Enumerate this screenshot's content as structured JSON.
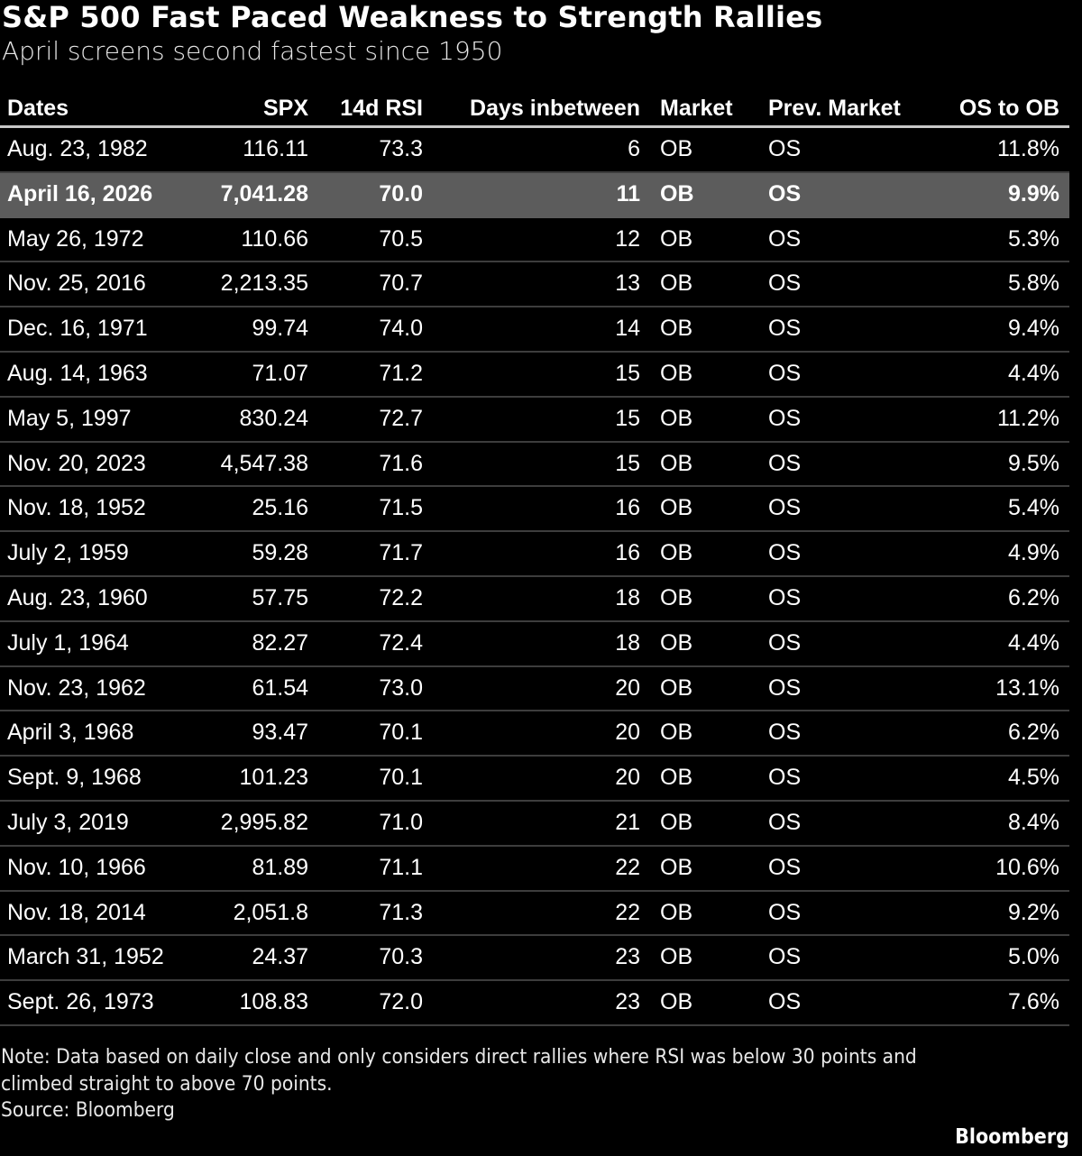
{
  "title": "S&P 500 Fast Paced Weakness to Strength Rallies",
  "subtitle": "April screens second fastest since 1950",
  "chart_data": {
    "type": "table",
    "columns": [
      "Dates",
      "SPX",
      "14d RSI",
      "Days inbetween",
      "Market",
      "Prev. Market",
      "OS to OB"
    ],
    "highlighted_row": 1,
    "rows": [
      [
        "Aug. 23, 1982",
        "116.11",
        "73.3",
        "6",
        "OB",
        "OS",
        "11.8%"
      ],
      [
        "April 16, 2026",
        "7,041.28",
        "70.0",
        "11",
        "OB",
        "OS",
        "9.9%"
      ],
      [
        "May 26, 1972",
        "110.66",
        "70.5",
        "12",
        "OB",
        "OS",
        "5.3%"
      ],
      [
        "Nov. 25, 2016",
        "2,213.35",
        "70.7",
        "13",
        "OB",
        "OS",
        "5.8%"
      ],
      [
        "Dec. 16, 1971",
        "99.74",
        "74.0",
        "14",
        "OB",
        "OS",
        "9.4%"
      ],
      [
        "Aug. 14, 1963",
        "71.07",
        "71.2",
        "15",
        "OB",
        "OS",
        "4.4%"
      ],
      [
        "May 5, 1997",
        "830.24",
        "72.7",
        "15",
        "OB",
        "OS",
        "11.2%"
      ],
      [
        "Nov. 20, 2023",
        "4,547.38",
        "71.6",
        "15",
        "OB",
        "OS",
        "9.5%"
      ],
      [
        "Nov. 18, 1952",
        "25.16",
        "71.5",
        "16",
        "OB",
        "OS",
        "5.4%"
      ],
      [
        "July 2, 1959",
        "59.28",
        "71.7",
        "16",
        "OB",
        "OS",
        "4.9%"
      ],
      [
        "Aug. 23, 1960",
        "57.75",
        "72.2",
        "18",
        "OB",
        "OS",
        "6.2%"
      ],
      [
        "July 1, 1964",
        "82.27",
        "72.4",
        "18",
        "OB",
        "OS",
        "4.4%"
      ],
      [
        "Nov. 23, 1962",
        "61.54",
        "73.0",
        "20",
        "OB",
        "OS",
        "13.1%"
      ],
      [
        "April 3, 1968",
        "93.47",
        "70.1",
        "20",
        "OB",
        "OS",
        "6.2%"
      ],
      [
        "Sept. 9, 1968",
        "101.23",
        "70.1",
        "20",
        "OB",
        "OS",
        "4.5%"
      ],
      [
        "July 3, 2019",
        "2,995.82",
        "71.0",
        "21",
        "OB",
        "OS",
        "8.4%"
      ],
      [
        "Nov. 10, 1966",
        "81.89",
        "71.1",
        "22",
        "OB",
        "OS",
        "10.6%"
      ],
      [
        "Nov. 18, 2014",
        "2,051.8",
        "71.3",
        "22",
        "OB",
        "OS",
        "9.2%"
      ],
      [
        "March 31, 1952",
        "24.37",
        "70.3",
        "23",
        "OB",
        "OS",
        "5.0%"
      ],
      [
        "Sept. 26, 1973",
        "108.83",
        "72.0",
        "23",
        "OB",
        "OS",
        "7.6%"
      ]
    ]
  },
  "note": "Note: Data based on daily close and only considers direct rallies where RSI was below 30 points and climbed straight to above 70 points.",
  "source": "Source: Bloomberg",
  "logo": "Bloomberg",
  "colors": {
    "background": "#000000",
    "highlight_row": "#5c5c5c",
    "text": "#ffffff"
  }
}
